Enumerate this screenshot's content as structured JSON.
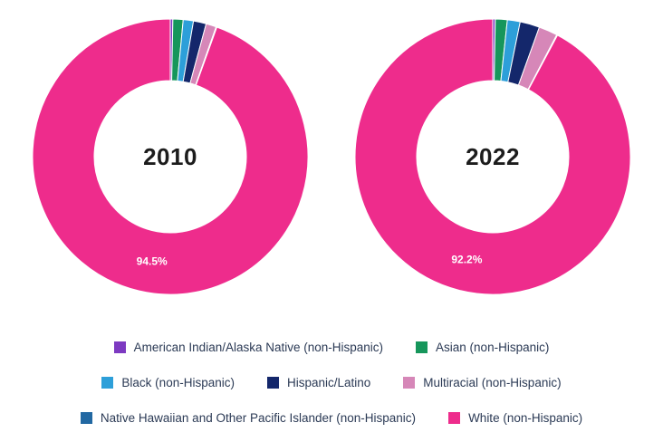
{
  "chart_data": [
    {
      "type": "pie",
      "variant": "donut",
      "title": "2010",
      "center_label": "2010",
      "categories": [
        "American Indian/Alaska Native (non-Hispanic)",
        "Asian (non-Hispanic)",
        "Black (non-Hispanic)",
        "Hispanic/Latino",
        "Multiracial (non-Hispanic)",
        "Native Hawaiian and Other Pacific Islander (non-Hispanic)",
        "White (non-Hispanic)"
      ],
      "values": [
        0.3,
        1.2,
        1.2,
        1.5,
        1.2,
        0.1,
        94.5
      ],
      "colors": [
        "#7d3ac1",
        "#16965b",
        "#2d9fd9",
        "#14276b",
        "#d687b8",
        "#2268a2",
        "#ee2c8c"
      ],
      "data_label": {
        "index": 6,
        "text": "94.5%"
      },
      "start_angle_deg": 0,
      "direction": "clockwise",
      "legend_position": "bottom"
    },
    {
      "type": "pie",
      "variant": "donut",
      "title": "2022",
      "center_label": "2022",
      "categories": [
        "American Indian/Alaska Native (non-Hispanic)",
        "Asian (non-Hispanic)",
        "Black (non-Hispanic)",
        "Hispanic/Latino",
        "Multiracial (non-Hispanic)",
        "Native Hawaiian and Other Pacific Islander (non-Hispanic)",
        "White (non-Hispanic)"
      ],
      "values": [
        0.3,
        1.4,
        1.5,
        2.3,
        2.2,
        0.1,
        92.2
      ],
      "colors": [
        "#7d3ac1",
        "#16965b",
        "#2d9fd9",
        "#14276b",
        "#d687b8",
        "#2268a2",
        "#ee2c8c"
      ],
      "data_label": {
        "index": 6,
        "text": "92.2%"
      },
      "start_angle_deg": 0,
      "direction": "clockwise",
      "legend_position": "bottom"
    }
  ],
  "legend": {
    "items": [
      {
        "label": "American Indian/Alaska Native (non-Hispanic)",
        "color": "#7d3ac1"
      },
      {
        "label": "Asian (non-Hispanic)",
        "color": "#16965b"
      },
      {
        "label": "Black (non-Hispanic)",
        "color": "#2d9fd9"
      },
      {
        "label": "Hispanic/Latino",
        "color": "#14276b"
      },
      {
        "label": "Multiracial (non-Hispanic)",
        "color": "#d687b8"
      },
      {
        "label": "Native Hawaiian and Other Pacific Islander (non-Hispanic)",
        "color": "#2268a2"
      },
      {
        "label": "White (non-Hispanic)",
        "color": "#ee2c8c"
      }
    ],
    "rows": [
      [
        0,
        1
      ],
      [
        2,
        3,
        4
      ],
      [
        5,
        6
      ]
    ]
  }
}
